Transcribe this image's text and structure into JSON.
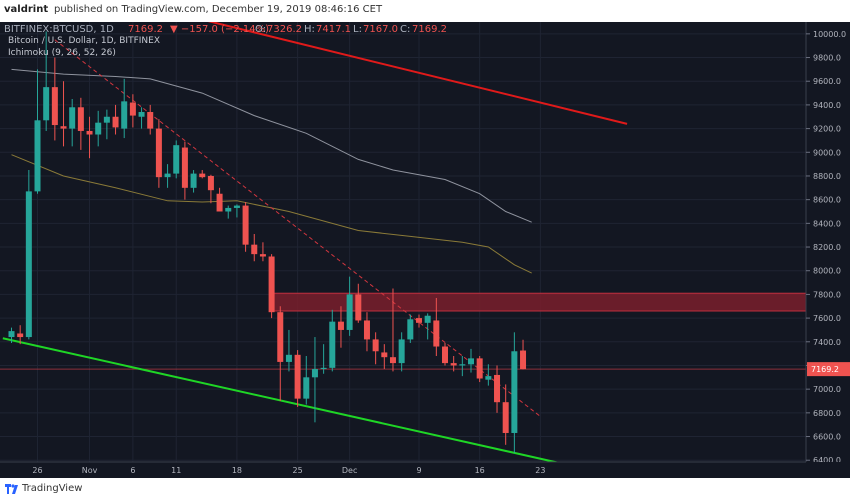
{
  "header": {
    "user": "valdrint",
    "published": "published on TradingView.com, December 19, 2019 08:46:16 CET",
    "symbol": "BITFINEX:BTCUSD, 1D",
    "last": "7169.2",
    "change": "▼ −157.0 (−2.14%)",
    "ohlc": [
      {
        "label": "O:",
        "value": "7326.2"
      },
      {
        "label": "H:",
        "value": "7417.1"
      },
      {
        "label": "L:",
        "value": "7167.0"
      },
      {
        "label": "C:",
        "value": "7169.2"
      }
    ]
  },
  "legend": {
    "title": "Bitcoin / U.S. Dollar, 1D, BITFINEX",
    "indicator": "Ichimoku (9, 26, 52, 26)"
  },
  "footer": {
    "brand": "TradingView"
  },
  "colors": {
    "background": "#131722",
    "up": "#26a69a",
    "down": "#ef5350",
    "red_line": "#e01a1a",
    "green_line": "#1fd626",
    "resistance_zone": "#7a1f2b",
    "gray_line": "#8f939e",
    "olive_line": "#8a7a38",
    "price_tag": "#ef5350"
  },
  "chart_data": {
    "type": "candlestick",
    "title": "Bitcoin / U.S. Dollar, 1D, BITFINEX",
    "xlabel": "",
    "ylabel": "",
    "ylim": [
      6385,
      10100
    ],
    "y_ticks": [
      6400,
      6600,
      6800,
      7000,
      7200,
      7400,
      7600,
      7800,
      8000,
      8200,
      8400,
      8600,
      8800,
      9000,
      9200,
      9400,
      9600,
      9800,
      10000
    ],
    "x_ticks": [
      {
        "index": 3,
        "label": "26"
      },
      {
        "index": 9,
        "label": "Nov"
      },
      {
        "index": 14,
        "label": "6"
      },
      {
        "index": 19,
        "label": "11"
      },
      {
        "index": 26,
        "label": "18"
      },
      {
        "index": 33,
        "label": "25"
      },
      {
        "index": 39,
        "label": "Dec"
      },
      {
        "index": 47,
        "label": "9"
      },
      {
        "index": 54,
        "label": "16"
      },
      {
        "index": 61,
        "label": "23"
      }
    ],
    "candles": [
      {
        "o": 7440,
        "h": 7520,
        "l": 7390,
        "c": 7490
      },
      {
        "o": 7470,
        "h": 7540,
        "l": 7380,
        "c": 7440
      },
      {
        "o": 7440,
        "h": 8850,
        "l": 7420,
        "c": 8670
      },
      {
        "o": 8670,
        "h": 9700,
        "l": 8650,
        "c": 9270
      },
      {
        "o": 9270,
        "h": 10020,
        "l": 9180,
        "c": 9550
      },
      {
        "o": 9550,
        "h": 9800,
        "l": 9100,
        "c": 9230
      },
      {
        "o": 9220,
        "h": 9600,
        "l": 9050,
        "c": 9200
      },
      {
        "o": 9200,
        "h": 9450,
        "l": 9050,
        "c": 9380
      },
      {
        "o": 9380,
        "h": 9460,
        "l": 9020,
        "c": 9180
      },
      {
        "o": 9180,
        "h": 9300,
        "l": 8950,
        "c": 9150
      },
      {
        "o": 9150,
        "h": 9350,
        "l": 9050,
        "c": 9250
      },
      {
        "o": 9250,
        "h": 9360,
        "l": 9110,
        "c": 9300
      },
      {
        "o": 9300,
        "h": 9400,
        "l": 9150,
        "c": 9210
      },
      {
        "o": 9200,
        "h": 9620,
        "l": 9120,
        "c": 9430
      },
      {
        "o": 9420,
        "h": 9490,
        "l": 9210,
        "c": 9310
      },
      {
        "o": 9300,
        "h": 9380,
        "l": 9200,
        "c": 9340
      },
      {
        "o": 9340,
        "h": 9400,
        "l": 9150,
        "c": 9200
      },
      {
        "o": 9200,
        "h": 9280,
        "l": 8700,
        "c": 8790
      },
      {
        "o": 8790,
        "h": 8900,
        "l": 8700,
        "c": 8820
      },
      {
        "o": 8820,
        "h": 9100,
        "l": 8780,
        "c": 9060
      },
      {
        "o": 9040,
        "h": 9090,
        "l": 8600,
        "c": 8700
      },
      {
        "o": 8700,
        "h": 8850,
        "l": 8660,
        "c": 8820
      },
      {
        "o": 8820,
        "h": 8850,
        "l": 8780,
        "c": 8790
      },
      {
        "o": 8800,
        "h": 8810,
        "l": 8570,
        "c": 8680
      },
      {
        "o": 8650,
        "h": 8700,
        "l": 8500,
        "c": 8500
      },
      {
        "o": 8500,
        "h": 8550,
        "l": 8440,
        "c": 8530
      },
      {
        "o": 8530,
        "h": 8560,
        "l": 8450,
        "c": 8550
      },
      {
        "o": 8550,
        "h": 8580,
        "l": 8160,
        "c": 8220
      },
      {
        "o": 8220,
        "h": 8310,
        "l": 8080,
        "c": 8140
      },
      {
        "o": 8140,
        "h": 8240,
        "l": 8080,
        "c": 8120
      },
      {
        "o": 8120,
        "h": 8140,
        "l": 7600,
        "c": 7650
      },
      {
        "o": 7650,
        "h": 7700,
        "l": 6900,
        "c": 7230
      },
      {
        "o": 7230,
        "h": 7500,
        "l": 7150,
        "c": 7290
      },
      {
        "o": 7290,
        "h": 7330,
        "l": 6850,
        "c": 6920
      },
      {
        "o": 6920,
        "h": 7280,
        "l": 6870,
        "c": 7100
      },
      {
        "o": 7100,
        "h": 7440,
        "l": 6720,
        "c": 7170
      },
      {
        "o": 7170,
        "h": 7380,
        "l": 7130,
        "c": 7180
      },
      {
        "o": 7180,
        "h": 7670,
        "l": 7150,
        "c": 7570
      },
      {
        "o": 7570,
        "h": 7700,
        "l": 7350,
        "c": 7500
      },
      {
        "o": 7500,
        "h": 7950,
        "l": 7450,
        "c": 7800
      },
      {
        "o": 7800,
        "h": 7890,
        "l": 7560,
        "c": 7580
      },
      {
        "o": 7580,
        "h": 7650,
        "l": 7320,
        "c": 7420
      },
      {
        "o": 7420,
        "h": 7480,
        "l": 7210,
        "c": 7320
      },
      {
        "o": 7310,
        "h": 7380,
        "l": 7170,
        "c": 7270
      },
      {
        "o": 7270,
        "h": 7850,
        "l": 7150,
        "c": 7220
      },
      {
        "o": 7220,
        "h": 7480,
        "l": 7150,
        "c": 7420
      },
      {
        "o": 7420,
        "h": 7630,
        "l": 7390,
        "c": 7590
      },
      {
        "o": 7600,
        "h": 7630,
        "l": 7520,
        "c": 7560
      },
      {
        "o": 7560,
        "h": 7640,
        "l": 7420,
        "c": 7620
      },
      {
        "o": 7580,
        "h": 7770,
        "l": 7280,
        "c": 7360
      },
      {
        "o": 7360,
        "h": 7390,
        "l": 7200,
        "c": 7220
      },
      {
        "o": 7220,
        "h": 7280,
        "l": 7150,
        "c": 7200
      },
      {
        "o": 7200,
        "h": 7280,
        "l": 7110,
        "c": 7210
      },
      {
        "o": 7210,
        "h": 7340,
        "l": 7140,
        "c": 7260
      },
      {
        "o": 7260,
        "h": 7280,
        "l": 7060,
        "c": 7090
      },
      {
        "o": 7080,
        "h": 7210,
        "l": 7030,
        "c": 7110
      },
      {
        "o": 7120,
        "h": 7200,
        "l": 6800,
        "c": 6890
      },
      {
        "o": 6890,
        "h": 7040,
        "l": 6530,
        "c": 6630
      },
      {
        "o": 6630,
        "h": 7480,
        "l": 6460,
        "c": 7320
      },
      {
        "o": 7326.2,
        "h": 7417.1,
        "l": 7167.0,
        "c": 7169.2
      }
    ],
    "cloud_line_gray": [
      [
        0,
        9700
      ],
      [
        6,
        9660
      ],
      [
        12,
        9640
      ],
      [
        16,
        9620
      ],
      [
        22,
        9500
      ],
      [
        28,
        9310
      ],
      [
        34,
        9160
      ],
      [
        40,
        8940
      ],
      [
        44,
        8850
      ],
      [
        50,
        8770
      ],
      [
        54,
        8650
      ],
      [
        57,
        8500
      ],
      [
        60,
        8410
      ]
    ],
    "cloud_line_olive": [
      [
        0,
        8980
      ],
      [
        6,
        8800
      ],
      [
        12,
        8700
      ],
      [
        18,
        8590
      ],
      [
        22,
        8580
      ],
      [
        26,
        8590
      ],
      [
        32,
        8500
      ],
      [
        40,
        8340
      ],
      [
        46,
        8290
      ],
      [
        52,
        8240
      ],
      [
        55,
        8200
      ],
      [
        58,
        8050
      ],
      [
        60,
        7980
      ]
    ],
    "red_trendline": [
      [
        22,
        10120
      ],
      [
        71,
        9240
      ]
    ],
    "green_trendline": [
      [
        -1,
        7430
      ],
      [
        63,
        6380
      ]
    ],
    "dashed_trendline": [
      [
        5,
        9950
      ],
      [
        61,
        6770
      ]
    ],
    "resistance_zone": {
      "y_low": 7660,
      "y_high": 7810,
      "x_start": 30
    },
    "horizontal_level": 7169.2,
    "last_price_label": "7169.2"
  }
}
